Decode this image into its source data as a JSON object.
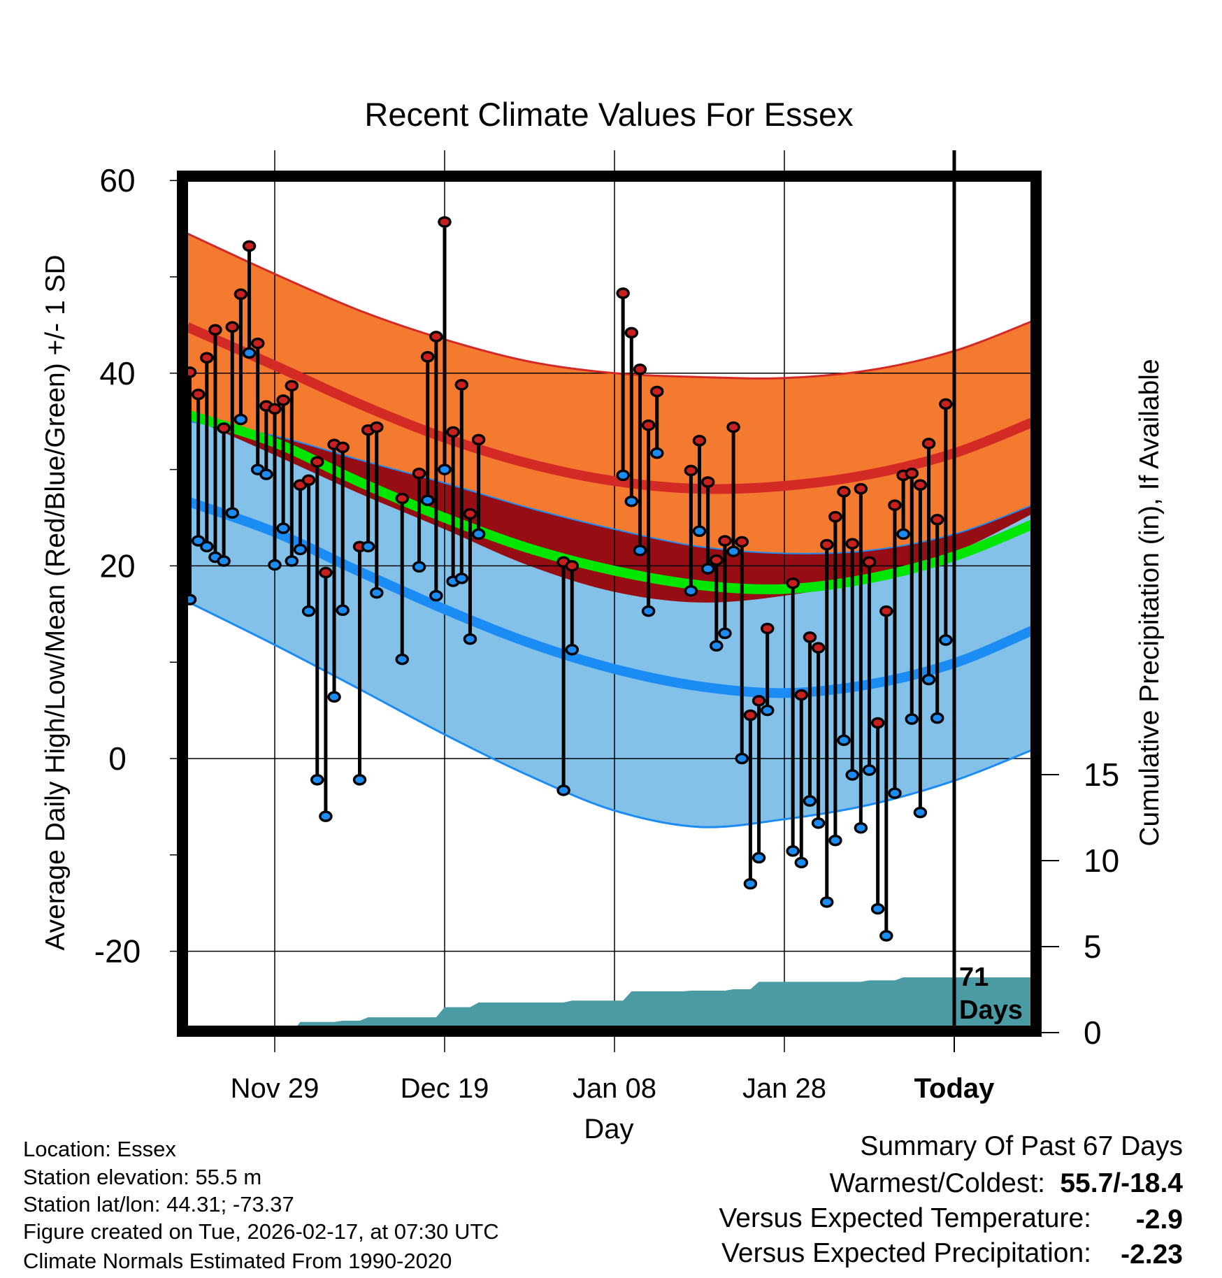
{
  "chart_data": {
    "type": "line",
    "title": "Recent Climate Values For Essex",
    "xlabel": "Day",
    "ylabel": "Average Daily High/Low/Mean (Red/Blue/Green) +/- 1 SD",
    "y2label": "Cumulative Precipitation (in), If Available",
    "ylim": [
      -27.8,
      60.3
    ],
    "y2lim": [
      0,
      17
    ],
    "xlim_day_offset": [
      -90.3,
      9.2
    ],
    "grid": true,
    "x_ticks": [
      {
        "offset": -80,
        "label": "Nov 29"
      },
      {
        "offset": -60,
        "label": "Dec 19"
      },
      {
        "offset": -40,
        "label": "Jan 08"
      },
      {
        "offset": -20,
        "label": "Jan 28"
      },
      {
        "offset": 0,
        "label": "Today"
      }
    ],
    "y_ticks": [
      {
        "value": 60,
        "label": "60"
      },
      {
        "value": 40,
        "label": "40"
      },
      {
        "value": 20,
        "label": "20"
      },
      {
        "value": 0,
        "label": "0"
      },
      {
        "value": -20,
        "label": "-20"
      }
    ],
    "y_minor_ticks": [
      50,
      30,
      10,
      -10
    ],
    "y2_ticks": [
      {
        "value": 0,
        "label": "0"
      },
      {
        "value": 5,
        "label": "5"
      },
      {
        "value": 10,
        "label": "10"
      },
      {
        "value": 15,
        "label": "15"
      }
    ],
    "window_label_number": "71",
    "window_label_unit": "Days",
    "normals": {
      "day_offset": [
        -90.3,
        -80,
        -70,
        -60,
        -50,
        -40,
        -30,
        -20,
        -10,
        0,
        9.2
      ],
      "high_plus_sd": [
        54.5,
        50.3,
        46.5,
        43.5,
        41.2,
        40.0,
        39.6,
        39.5,
        40.3,
        42.3,
        45.4
      ],
      "mean_high": [
        44.8,
        40.8,
        36.8,
        33.3,
        30.6,
        28.8,
        28.0,
        28.3,
        29.5,
        31.7,
        34.9
      ],
      "high_minus_sd": [
        35.5,
        31.5,
        27.5,
        23.8,
        20.0,
        17.3,
        16.2,
        16.9,
        18.6,
        21.4,
        25.4
      ],
      "mean": [
        35.7,
        32.8,
        28.7,
        25.0,
        21.8,
        19.5,
        18.0,
        17.6,
        18.7,
        21.0,
        24.3
      ],
      "low_plus_sd": [
        35.0,
        33.5,
        31.0,
        28.6,
        26.0,
        23.8,
        22.0,
        21.3,
        21.6,
        23.3,
        26.3
      ],
      "mean_low": [
        26.7,
        23.5,
        19.4,
        15.5,
        12.0,
        9.3,
        7.5,
        6.8,
        7.7,
        9.9,
        13.3
      ],
      "low_minus_sd": [
        16.3,
        11.8,
        7.2,
        2.5,
        -1.8,
        -5.4,
        -7.1,
        -6.3,
        -4.8,
        -2.3,
        0.9
      ]
    },
    "observations": {
      "day_offset": [
        -90,
        -89,
        -88,
        -87,
        -86,
        -85,
        -84,
        -83,
        -82,
        -81,
        -80,
        -79,
        -78,
        -77,
        -76,
        -75,
        -74,
        -73,
        -72,
        -70,
        -69,
        -68,
        -65,
        -63,
        -62,
        -61,
        -60,
        -59,
        -58,
        -57,
        -56,
        -46,
        -45,
        -39,
        -38,
        -37,
        -36,
        -35,
        -31,
        -30,
        -29,
        -28,
        -27,
        -26,
        -25,
        -24,
        -23,
        -22,
        -19,
        -18,
        -17,
        -16,
        -15,
        -14,
        -13,
        -12,
        -11,
        -10,
        -9,
        -8,
        -7,
        -6,
        -5,
        -4,
        -3,
        -2,
        -1
      ],
      "high": [
        40.1,
        37.8,
        41.6,
        44.5,
        34.3,
        44.8,
        48.2,
        53.2,
        43.1,
        36.6,
        36.3,
        37.2,
        38.7,
        28.4,
        28.9,
        30.8,
        19.3,
        32.6,
        32.3,
        22.0,
        34.1,
        34.4,
        27.0,
        29.6,
        41.7,
        43.8,
        55.7,
        33.9,
        38.8,
        25.4,
        33.1,
        20.4,
        20.0,
        48.3,
        44.2,
        40.4,
        34.6,
        38.1,
        29.9,
        33.0,
        28.7,
        20.6,
        22.6,
        34.4,
        22.5,
        4.5,
        6.0,
        13.5,
        18.2,
        6.6,
        12.6,
        11.5,
        22.2,
        25.1,
        27.7,
        22.3,
        28.0,
        20.4,
        3.7,
        15.3,
        26.3,
        29.4,
        29.6,
        28.4,
        32.7,
        24.8,
        36.8
      ],
      "low": [
        16.5,
        22.6,
        22.0,
        20.9,
        20.5,
        25.5,
        35.2,
        42.1,
        30.0,
        29.5,
        20.1,
        23.9,
        20.5,
        21.7,
        15.3,
        -2.2,
        -6.0,
        6.4,
        15.4,
        -2.2,
        22.0,
        17.2,
        10.3,
        19.9,
        26.8,
        16.9,
        30.0,
        18.4,
        18.7,
        12.4,
        23.3,
        -3.3,
        11.3,
        29.4,
        26.7,
        21.6,
        15.3,
        31.7,
        17.4,
        23.6,
        19.7,
        11.7,
        13.0,
        21.5,
        0.0,
        -13.0,
        -10.3,
        5.0,
        -9.6,
        -10.8,
        -4.4,
        -6.7,
        -14.9,
        -8.5,
        1.9,
        -1.7,
        -7.2,
        -1.2,
        -15.6,
        -18.4,
        -3.6,
        23.3,
        4.1,
        -5.6,
        8.2,
        4.2,
        12.3
      ]
    },
    "cumulative_precip": {
      "day_offset": [
        -90.3,
        -78,
        -77,
        -73,
        -72,
        -70,
        -69,
        -61,
        -60,
        -57,
        -56,
        -46,
        -45,
        -39,
        -38,
        -32,
        -31,
        -27,
        -26,
        -24,
        -23,
        -11,
        -10,
        -7,
        -6,
        9.2
      ],
      "value": [
        0,
        0,
        0.62,
        0.62,
        0.69,
        0.69,
        0.89,
        0.89,
        1.48,
        1.48,
        1.75,
        1.75,
        1.86,
        1.86,
        2.4,
        2.4,
        2.44,
        2.44,
        2.52,
        2.52,
        2.95,
        2.95,
        3.04,
        3.04,
        3.21,
        3.21
      ]
    },
    "colors": {
      "high_band": "#f47a30",
      "high_line": "#d42a26",
      "overlap_band": "#960d14",
      "mean_line": "#00e600",
      "low_band": "#84c1e8",
      "low_line": "#1c8cf5",
      "high_marker": "#c8201e",
      "low_marker": "#1c8cf5",
      "precip_fill": "#4a9ba4"
    }
  },
  "footer": {
    "location": "Location: Essex",
    "elevation": "Station elevation: 55.5 m",
    "latlon": "Station lat/lon: 44.31; -73.37",
    "created": "Figure created on Tue, 2026-02-17, at 07:30 UTC",
    "normals_note": "Climate Normals Estimated From 1990-2020"
  },
  "summary": {
    "heading": "Summary Of Past 67 Days",
    "warmest_coldest_label": "Warmest/Coldest:",
    "warmest_coldest_value": "55.7/-18.4",
    "temp_label": "Versus Expected Temperature:",
    "temp_value": "-2.9",
    "temp_color": "#1c8cf5",
    "precip_label": "Versus Expected Precipitation:",
    "precip_value": "-2.23",
    "precip_color": "#a0522d"
  }
}
